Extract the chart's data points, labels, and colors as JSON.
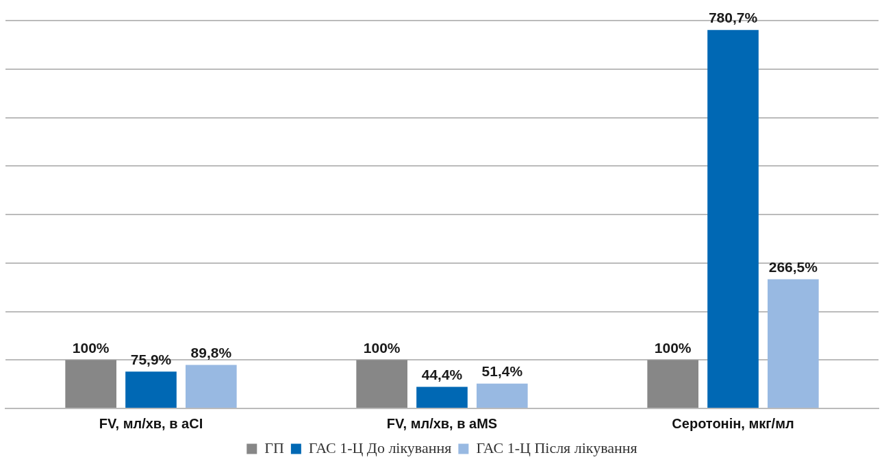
{
  "chart_data": {
    "type": "bar",
    "categories": [
      "FV, мл/хв, в aCI",
      "FV, мл/хв, в aMS",
      "Серотонін, мкг/мл"
    ],
    "series": [
      {
        "name": "ГП",
        "color": "#878787",
        "values": [
          100,
          100,
          100
        ],
        "value_labels": [
          "100%",
          "100%",
          "100%"
        ]
      },
      {
        "name": "ГАС 1-Ц До лікування",
        "color": "#0068b4",
        "values": [
          75.9,
          44.4,
          780.7
        ],
        "value_labels": [
          "75,9%",
          "44,4%",
          "780,7%"
        ]
      },
      {
        "name": "ГАС 1-Ц Після лікування",
        "color": "#98b9e2",
        "values": [
          89.8,
          51.4,
          266.5
        ],
        "value_labels": [
          "89,8%",
          "51,4%",
          "266,5%"
        ]
      }
    ],
    "ylim": [
      0,
      800
    ],
    "yticks": [
      {
        "value": 0,
        "label": null
      },
      {
        "value": 100,
        "label": null
      },
      {
        "value": 200,
        "label": null
      },
      {
        "value": 300,
        "label": null
      },
      {
        "value": 400,
        "label": null
      },
      {
        "value": 500,
        "label": null
      },
      {
        "value": 600,
        "label": null
      },
      {
        "value": 700,
        "label": null
      },
      {
        "value": 800,
        "label": null
      }
    ],
    "grid": "y",
    "legend": "bottom",
    "tick_labels": "x"
  }
}
